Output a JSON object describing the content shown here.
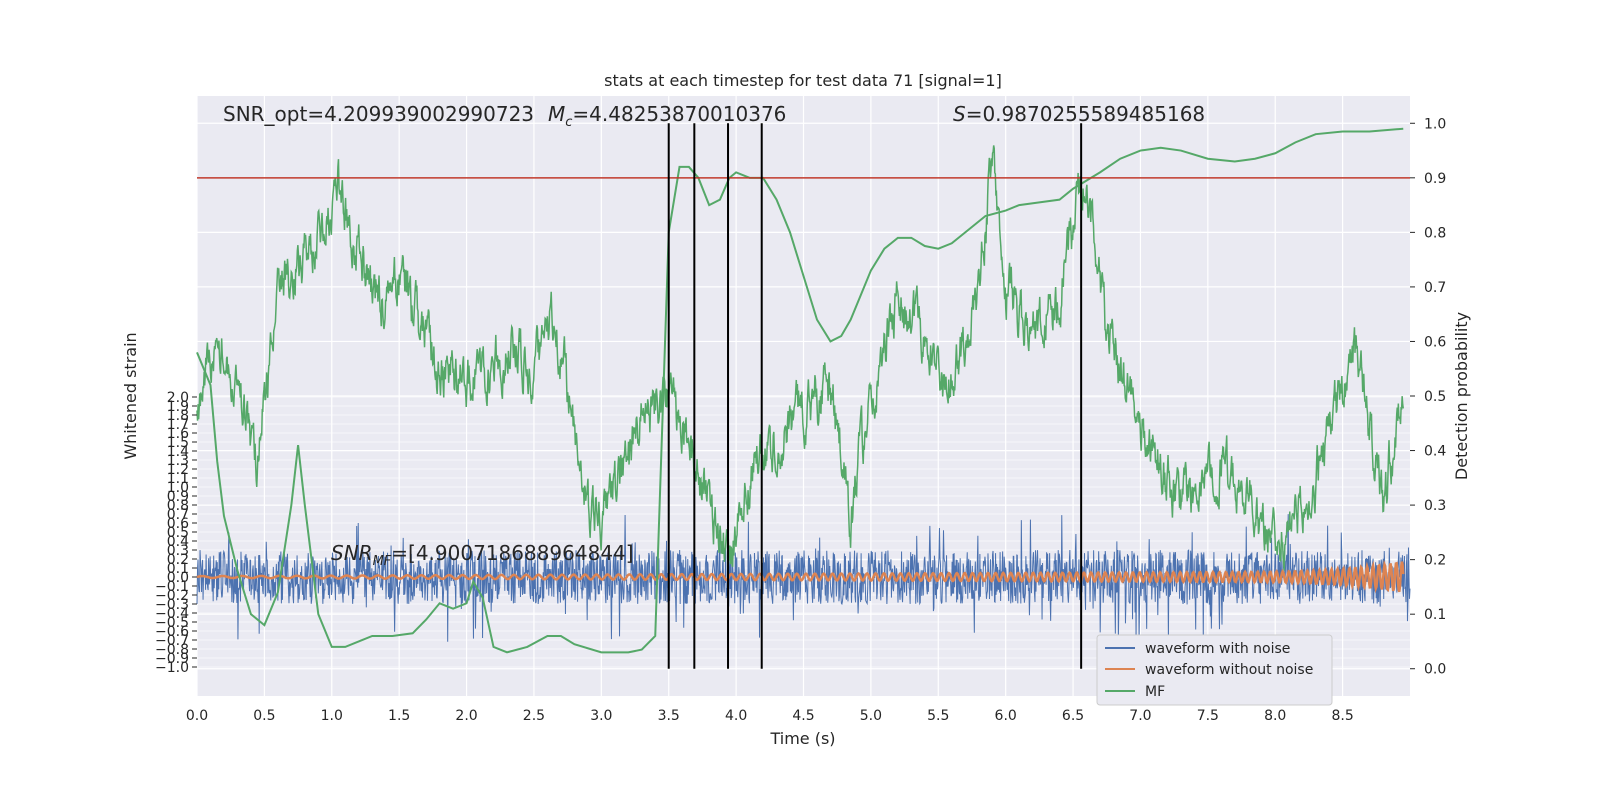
{
  "chart_data": {
    "type": "line",
    "title": "stats at each timestep for test data 71 [signal=1]",
    "xlabel": "Time (s)",
    "ylabel_left": "Whitened strain",
    "ylabel_right": "Detection probability",
    "xlim": [
      0,
      9
    ],
    "xticks": [
      "0.0",
      "0.5",
      "1.0",
      "1.5",
      "2.0",
      "2.5",
      "3.0",
      "3.5",
      "4.0",
      "4.5",
      "5.0",
      "5.5",
      "6.0",
      "6.5",
      "7.0",
      "7.5",
      "8.0",
      "8.5"
    ],
    "yleft_ticks": [
      "2.0",
      "1.9",
      "1.8",
      "1.7",
      "1.6",
      "1.5",
      "1.4",
      "1.3",
      "1.2",
      "1.1",
      "1.0",
      "0.9",
      "0.8",
      "0.7",
      "0.6",
      "0.5",
      "0.4",
      "0.3",
      "0.2",
      "0.1",
      "0.0",
      "−0.1",
      "−0.2",
      "−0.3",
      "−0.4",
      "−0.5",
      "−0.6",
      "−0.7",
      "−0.8",
      "−0.9",
      "−1.0"
    ],
    "yright_ticks": [
      "1.0",
      "0.9",
      "0.8",
      "0.7",
      "0.6",
      "0.5",
      "0.4",
      "0.3",
      "0.2",
      "0.1",
      "0.0"
    ],
    "yright_lim": [
      -0.05,
      1.05
    ],
    "threshold": 0.9,
    "vlines": [
      3.5,
      3.69,
      3.94,
      4.19,
      6.56
    ],
    "annotations": {
      "snr_opt": "SNR_opt=4.209939002990723",
      "mc": "=4.48253870010376",
      "s": "=0.9870255589485168",
      "snr_mf": "=[4.900718688964844]"
    },
    "series": [
      {
        "name": "waveform with noise",
        "color": "#4c72b0",
        "envelope": 0.3
      },
      {
        "name": "waveform without noise",
        "color": "#dd8452"
      },
      {
        "name": "MF",
        "color": "#55a868",
        "points": [
          [
            0.0,
            0.58
          ],
          [
            0.1,
            0.52
          ],
          [
            0.15,
            0.38
          ],
          [
            0.2,
            0.28
          ],
          [
            0.3,
            0.18
          ],
          [
            0.4,
            0.1
          ],
          [
            0.5,
            0.08
          ],
          [
            0.6,
            0.14
          ],
          [
            0.7,
            0.3
          ],
          [
            0.75,
            0.41
          ],
          [
            0.8,
            0.3
          ],
          [
            0.9,
            0.1
          ],
          [
            1.0,
            0.04
          ],
          [
            1.1,
            0.04
          ],
          [
            1.2,
            0.05
          ],
          [
            1.3,
            0.06
          ],
          [
            1.45,
            0.06
          ],
          [
            1.6,
            0.065
          ],
          [
            1.7,
            0.09
          ],
          [
            1.8,
            0.12
          ],
          [
            1.9,
            0.11
          ],
          [
            2.0,
            0.12
          ],
          [
            2.05,
            0.16
          ],
          [
            2.12,
            0.13
          ],
          [
            2.2,
            0.04
          ],
          [
            2.3,
            0.03
          ],
          [
            2.45,
            0.04
          ],
          [
            2.6,
            0.06
          ],
          [
            2.7,
            0.06
          ],
          [
            2.8,
            0.045
          ],
          [
            3.0,
            0.03
          ],
          [
            3.2,
            0.03
          ],
          [
            3.3,
            0.035
          ],
          [
            3.4,
            0.06
          ],
          [
            3.5,
            0.8
          ],
          [
            3.58,
            0.92
          ],
          [
            3.65,
            0.92
          ],
          [
            3.72,
            0.9
          ],
          [
            3.8,
            0.85
          ],
          [
            3.88,
            0.86
          ],
          [
            3.95,
            0.9
          ],
          [
            4.0,
            0.91
          ],
          [
            4.1,
            0.9
          ],
          [
            4.2,
            0.9
          ],
          [
            4.3,
            0.86
          ],
          [
            4.4,
            0.8
          ],
          [
            4.5,
            0.72
          ],
          [
            4.6,
            0.64
          ],
          [
            4.7,
            0.6
          ],
          [
            4.78,
            0.61
          ],
          [
            4.85,
            0.64
          ],
          [
            5.0,
            0.73
          ],
          [
            5.1,
            0.77
          ],
          [
            5.2,
            0.79
          ],
          [
            5.3,
            0.79
          ],
          [
            5.4,
            0.775
          ],
          [
            5.5,
            0.77
          ],
          [
            5.6,
            0.78
          ],
          [
            5.7,
            0.8
          ],
          [
            5.85,
            0.83
          ],
          [
            6.0,
            0.84
          ],
          [
            6.1,
            0.85
          ],
          [
            6.25,
            0.855
          ],
          [
            6.4,
            0.86
          ],
          [
            6.5,
            0.88
          ],
          [
            6.7,
            0.91
          ],
          [
            6.85,
            0.935
          ],
          [
            7.0,
            0.95
          ],
          [
            7.15,
            0.955
          ],
          [
            7.3,
            0.95
          ],
          [
            7.5,
            0.935
          ],
          [
            7.7,
            0.93
          ],
          [
            7.85,
            0.935
          ],
          [
            8.0,
            0.945
          ],
          [
            8.15,
            0.965
          ],
          [
            8.3,
            0.98
          ],
          [
            8.5,
            0.985
          ],
          [
            8.7,
            0.985
          ],
          [
            8.95,
            0.99
          ]
        ]
      },
      {
        "name": "detection probability",
        "color": "#55a868",
        "noisy": true
      }
    ],
    "legend_placement": "lower-right",
    "grid": true
  }
}
